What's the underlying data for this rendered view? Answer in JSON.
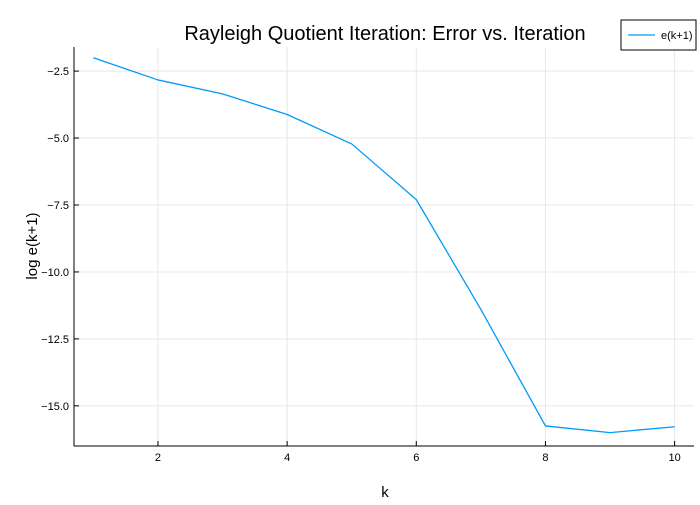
{
  "chart_data": {
    "type": "line",
    "title": "Rayleigh Quotient Iteration: Error vs. Iteration",
    "xlabel": "k",
    "ylabel": "log e(k+1)",
    "xlim": [
      0.7,
      10.3
    ],
    "ylim": [
      -16.5,
      -1.6
    ],
    "xticks": [
      2,
      4,
      6,
      8,
      10
    ],
    "xtick_labels": [
      "2",
      "4",
      "6",
      "8",
      "10"
    ],
    "yticks": [
      -2.5,
      -5.0,
      -7.5,
      -10.0,
      -12.5,
      -15.0
    ],
    "ytick_labels": [
      "−2.5",
      "−5.0",
      "−7.5",
      "−10.0",
      "−12.5",
      "−15.0"
    ],
    "grid": true,
    "legend_position": "top-right",
    "series": [
      {
        "name": "e(k+1)",
        "color": "#009af9",
        "x": [
          1,
          2,
          3,
          4,
          5,
          6,
          7,
          8,
          9,
          10
        ],
        "values": [
          -2.0,
          -2.83,
          -3.35,
          -4.12,
          -5.22,
          -7.3,
          -11.4,
          -15.75,
          -16.0,
          -15.78
        ]
      }
    ]
  }
}
